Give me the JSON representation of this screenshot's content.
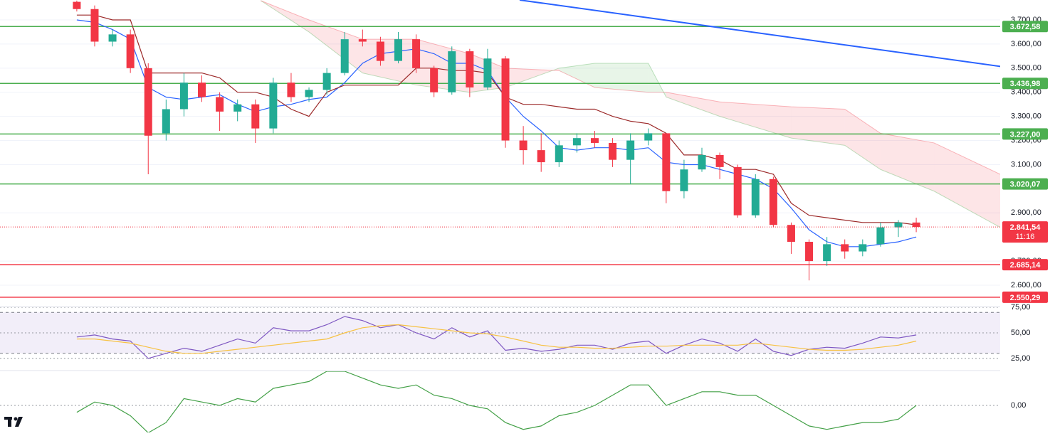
{
  "chart_data": [
    {
      "type": "candlestick",
      "xlim": [
        -4.3,
        51.7
      ],
      "ylim": [
        2514.5,
        3782.6
      ],
      "yticks": [
        {
          "value": 3700,
          "label": "3.700,00"
        },
        {
          "value": 3600,
          "label": "3.600,00"
        },
        {
          "value": 3500,
          "label": "3.500,00"
        },
        {
          "value": 3400,
          "label": "3.400,00"
        },
        {
          "value": 3300,
          "label": "3.300,00"
        },
        {
          "value": 3200,
          "label": "3.200,00"
        },
        {
          "value": 3100,
          "label": "3.100,00"
        },
        {
          "value": 2900,
          "label": "2.900,00"
        },
        {
          "value": 2700,
          "label": "2.700,00"
        },
        {
          "value": 2600,
          "label": "2.600,00"
        }
      ],
      "grid": true,
      "up_color": "#22ab94",
      "down_color": "#f23645",
      "open": [
        3775,
        3745,
        3610,
        3640,
        3500,
        3230,
        3330,
        3440,
        3380,
        3320,
        3350,
        3250,
        3440,
        3380,
        3410,
        3480,
        3620,
        3610,
        3530,
        3620,
        3500,
        3400,
        3570,
        3420,
        3540,
        3200,
        3160,
        3110,
        3180,
        3210,
        3190,
        3120,
        3200,
        3230,
        2990,
        3080,
        3140,
        3090,
        2890,
        3040,
        2850,
        2780,
        2700,
        2770,
        2740,
        2770,
        2840,
        2860
      ],
      "high": [
        3780,
        3760,
        3660,
        3660,
        3520,
        3370,
        3480,
        3470,
        3400,
        3370,
        3370,
        3460,
        3480,
        3420,
        3500,
        3650,
        3660,
        3630,
        3650,
        3640,
        3510,
        3590,
        3580,
        3580,
        3550,
        3260,
        3230,
        3200,
        3230,
        3240,
        3210,
        3230,
        3250,
        3230,
        3120,
        3170,
        3150,
        3100,
        3060,
        3050,
        2860,
        2790,
        2800,
        2790,
        2790,
        2860,
        2870,
        2880
      ],
      "low": [
        3735,
        3590,
        3590,
        3480,
        3060,
        3200,
        3300,
        3360,
        3240,
        3280,
        3190,
        3230,
        3360,
        3360,
        3390,
        3470,
        3590,
        3510,
        3520,
        3480,
        3380,
        3390,
        3380,
        3410,
        3170,
        3100,
        3070,
        3090,
        3150,
        3170,
        3090,
        3020,
        3180,
        2940,
        2960,
        3070,
        3040,
        2880,
        2880,
        2840,
        2730,
        2620,
        2680,
        2710,
        2720,
        2760,
        2800,
        2820
      ],
      "close": [
        3745,
        3610,
        3640,
        3500,
        3220,
        3330,
        3440,
        3380,
        3320,
        3350,
        3250,
        3440,
        3380,
        3410,
        3480,
        3620,
        3610,
        3530,
        3620,
        3500,
        3400,
        3570,
        3420,
        3540,
        3200,
        3160,
        3110,
        3180,
        3210,
        3190,
        3120,
        3200,
        3230,
        2990,
        3080,
        3140,
        3090,
        2890,
        3040,
        2850,
        2780,
        2700,
        2770,
        2740,
        2770,
        2840,
        2860,
        2841.54
      ],
      "series": [
        {
          "color": "#2962ff",
          "values": [
            3700,
            3690,
            3660,
            3620,
            3420,
            3380,
            3370,
            3380,
            3390,
            3350,
            3320,
            3340,
            3350,
            3370,
            3380,
            3440,
            3520,
            3560,
            3570,
            3580,
            3560,
            3520,
            3520,
            3490,
            3380,
            3300,
            3240,
            3170,
            3160,
            3170,
            3170,
            3160,
            3170,
            3110,
            3100,
            3100,
            3080,
            3060,
            3040,
            3000,
            2920,
            2830,
            2780,
            2760,
            2760,
            2770,
            2780,
            2800
          ]
        },
        {
          "color": "#9c2a2a",
          "values": [
            3720,
            3720,
            3700,
            3700,
            3480,
            3480,
            3480,
            3480,
            3460,
            3400,
            3400,
            3380,
            3330,
            3300,
            3400,
            3430,
            3430,
            3430,
            3430,
            3500,
            3500,
            3490,
            3490,
            3480,
            3380,
            3350,
            3350,
            3340,
            3330,
            3330,
            3300,
            3280,
            3270,
            3230,
            3140,
            3140,
            3120,
            3080,
            3080,
            3060,
            2940,
            2890,
            2880,
            2870,
            2860,
            2860,
            2860,
            2850
          ]
        }
      ],
      "cloud": {
        "x": [
          10.3,
          13,
          16,
          19,
          22,
          24,
          27,
          29,
          32,
          33,
          36,
          40,
          43,
          45,
          48,
          51.7
        ],
        "span_a": [
          3780,
          3650,
          3480,
          3430,
          3400,
          3420,
          3500,
          3520,
          3520,
          3380,
          3300,
          3210,
          3180,
          3080,
          2990,
          2840
        ],
        "span_b": [
          3780,
          3700,
          3620,
          3620,
          3560,
          3500,
          3490,
          3420,
          3400,
          3400,
          3360,
          3340,
          3330,
          3230,
          3190,
          3060
        ],
        "up_color": "#4caf50",
        "down_color": "#f23645"
      },
      "levels": [
        {
          "value": 3672.58,
          "label": "3.672,58",
          "color": "#4caf50"
        },
        {
          "value": 3436.98,
          "label": "3.436,98",
          "color": "#4caf50"
        },
        {
          "value": 3227.0,
          "label": "3.227,00",
          "color": "#4caf50"
        },
        {
          "value": 3020.07,
          "label": "3.020,07",
          "color": "#4caf50"
        },
        {
          "value": 2685.14,
          "label": "2.685,14",
          "color": "#f23645"
        },
        {
          "value": 2550.29,
          "label": "2.550,29",
          "color": "#f23645"
        }
      ],
      "current_price": {
        "value": 2841.54,
        "label": "2.841,54",
        "countdown": "11:16",
        "color": "#f23645"
      }
    },
    {
      "type": "line",
      "xlim": [
        -4.3,
        51.7
      ],
      "ylim": [
        13.9,
        75
      ],
      "yticks": [
        {
          "value": 75,
          "label": "75,00"
        },
        {
          "value": 50,
          "label": "50,00"
        },
        {
          "value": 25,
          "label": "25,00"
        }
      ],
      "bands": [
        30,
        70
      ],
      "series": [
        {
          "color": "#7e57c2",
          "values": [
            46,
            48,
            44,
            42,
            25,
            30,
            35,
            32,
            38,
            44,
            40,
            55,
            52,
            52,
            58,
            66,
            62,
            55,
            58,
            50,
            44,
            55,
            46,
            52,
            33,
            35,
            32,
            34,
            38,
            38,
            34,
            40,
            42,
            30,
            38,
            44,
            40,
            32,
            44,
            32,
            28,
            34,
            36,
            35,
            40,
            46,
            45,
            48
          ]
        },
        {
          "color": "#f7c244",
          "values": [
            44,
            44,
            42,
            40,
            36,
            32,
            30,
            30,
            32,
            34,
            36,
            38,
            40,
            42,
            44,
            50,
            55,
            57,
            58,
            56,
            54,
            52,
            50,
            49,
            46,
            42,
            38,
            36,
            36,
            35,
            35,
            36,
            37,
            37,
            38,
            38,
            38,
            38,
            40,
            38,
            36,
            34,
            33,
            33,
            34,
            36,
            38,
            42
          ]
        }
      ]
    },
    {
      "type": "line",
      "xlim": [
        -4.3,
        51.7
      ],
      "ylim": [
        -0.79,
        1
      ],
      "yticks": [
        {
          "value": 0,
          "label": "0,00"
        }
      ],
      "series": [
        {
          "color": "#43a047",
          "values": [
            -0.2,
            0.1,
            0,
            -0.3,
            -0.8,
            -0.5,
            0.2,
            0.1,
            0,
            0.2,
            0.1,
            0.5,
            0.6,
            0.7,
            1.0,
            1.0,
            0.8,
            0.6,
            0.5,
            0.6,
            0.3,
            0.2,
            0.0,
            -0.1,
            -0.5,
            -0.7,
            -0.6,
            -0.3,
            -0.2,
            0.0,
            0.3,
            0.6,
            0.6,
            0.0,
            0.2,
            0.4,
            0.4,
            0.3,
            0.3,
            0.0,
            -0.3,
            -0.6,
            -0.7,
            -0.6,
            -0.5,
            -0.5,
            -0.4,
            0.0
          ]
        }
      ]
    }
  ]
}
